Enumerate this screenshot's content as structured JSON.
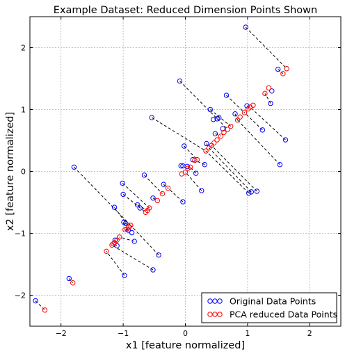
{
  "chart_data": {
    "type": "scatter",
    "title": "Example Dataset: Reduced Dimension Points Shown",
    "xlabel": "x1 [feature normalized]",
    "ylabel": "x2 [feature normalized]",
    "xlim": [
      -2.5,
      2.5
    ],
    "ylim": [
      -2.5,
      2.5
    ],
    "xticks": [
      -2,
      -1,
      0,
      1,
      2
    ],
    "yticks": [
      -2,
      -1,
      0,
      1,
      2
    ],
    "xtick_labels": [
      "−2",
      "−1",
      "0",
      "1",
      "2"
    ],
    "ytick_labels": [
      "−2",
      "−1",
      "0",
      "1",
      "2"
    ],
    "grid": true,
    "legend_position": "bottom-right",
    "colors": {
      "original": "#0000ff",
      "reduced": "#ff0000",
      "connector": "#000000"
    },
    "series": [
      {
        "name": "Original Data Points",
        "marker": "open-circle",
        "color": "#0000ff",
        "points": [
          [
            -2.41,
            -2.09
          ],
          [
            -1.87,
            -1.73
          ],
          [
            -1.79,
            0.07
          ],
          [
            -1.13,
            -1.11
          ],
          [
            -1.1,
            -1.2
          ],
          [
            -1.14,
            -0.58
          ],
          [
            -0.98,
            -1.68
          ],
          [
            -1.0,
            -0.37
          ],
          [
            -1.01,
            -0.19
          ],
          [
            -0.99,
            -0.82
          ],
          [
            -0.96,
            -0.84
          ],
          [
            -0.92,
            -0.95
          ],
          [
            -0.86,
            -0.99
          ],
          [
            -0.82,
            -1.13
          ],
          [
            -0.77,
            -0.54
          ],
          [
            -0.73,
            -0.59
          ],
          [
            -0.66,
            -0.06
          ],
          [
            -0.54,
            0.87
          ],
          [
            -0.52,
            -1.59
          ],
          [
            -0.52,
            -0.43
          ],
          [
            -0.43,
            -1.35
          ],
          [
            -0.35,
            -0.21
          ],
          [
            -0.09,
            1.46
          ],
          [
            -0.07,
            0.09
          ],
          [
            -0.04,
            0.09
          ],
          [
            -0.02,
            0.41
          ],
          [
            -0.04,
            -0.49
          ],
          [
            0.03,
            0.08
          ],
          [
            0.12,
            0.19
          ],
          [
            0.17,
            -0.03
          ],
          [
            0.26,
            -0.31
          ],
          [
            0.31,
            0.11
          ],
          [
            0.34,
            0.45
          ],
          [
            0.4,
            1.0
          ],
          [
            0.45,
            0.84
          ],
          [
            0.48,
            0.61
          ],
          [
            0.51,
            0.85
          ],
          [
            0.54,
            0.87
          ],
          [
            0.6,
            0.69
          ],
          [
            0.66,
            1.23
          ],
          [
            0.8,
            0.93
          ],
          [
            0.99,
            1.06
          ],
          [
            1.02,
            -0.35
          ],
          [
            1.06,
            -0.33
          ],
          [
            1.15,
            -0.32
          ],
          [
            1.24,
            0.67
          ],
          [
            1.37,
            1.1
          ],
          [
            1.39,
            1.3
          ],
          [
            1.52,
            0.11
          ],
          [
            1.61,
            0.51
          ],
          [
            0.97,
            2.33
          ],
          [
            1.49,
            1.65
          ]
        ]
      },
      {
        "name": "PCA reduced Data Points",
        "marker": "open-circle",
        "color": "#ff0000",
        "points": [
          [
            -2.26,
            -2.24
          ],
          [
            -1.81,
            -1.8
          ],
          [
            -1.27,
            -1.29
          ],
          [
            -1.18,
            -1.19
          ],
          [
            -1.16,
            -1.17
          ],
          [
            -1.14,
            -1.15
          ],
          [
            -1.1,
            -1.11
          ],
          [
            -1.06,
            -1.06
          ],
          [
            -0.97,
            -0.94
          ],
          [
            -0.94,
            -0.93
          ],
          [
            -0.91,
            -0.9
          ],
          [
            -0.88,
            -0.87
          ],
          [
            -0.64,
            -0.66
          ],
          [
            -0.61,
            -0.63
          ],
          [
            -0.58,
            -0.59
          ],
          [
            -0.45,
            -0.47
          ],
          [
            -0.37,
            -0.36
          ],
          [
            -0.28,
            -0.27
          ],
          [
            -0.06,
            -0.04
          ],
          [
            0.0,
            -0.01
          ],
          [
            0.04,
            0.05
          ],
          [
            0.08,
            0.07
          ],
          [
            0.15,
            0.18
          ],
          [
            0.19,
            0.19
          ],
          [
            0.33,
            0.33
          ],
          [
            0.38,
            0.38
          ],
          [
            0.42,
            0.42
          ],
          [
            0.46,
            0.46
          ],
          [
            0.51,
            0.51
          ],
          [
            0.57,
            0.57
          ],
          [
            0.62,
            0.63
          ],
          [
            0.68,
            0.68
          ],
          [
            0.73,
            0.73
          ],
          [
            0.84,
            0.83
          ],
          [
            0.88,
            0.88
          ],
          [
            0.95,
            0.95
          ],
          [
            1.01,
            1.01
          ],
          [
            1.04,
            1.04
          ],
          [
            1.09,
            1.07
          ],
          [
            1.28,
            1.26
          ],
          [
            1.34,
            1.35
          ],
          [
            1.57,
            1.58
          ],
          [
            1.63,
            1.66
          ]
        ]
      }
    ],
    "projection_lines": [
      [
        [
          -2.41,
          -2.09
        ],
        [
          -2.26,
          -2.24
        ]
      ],
      [
        [
          -1.87,
          -1.73
        ],
        [
          -1.81,
          -1.8
        ]
      ],
      [
        [
          -1.79,
          0.07
        ],
        [
          -0.88,
          -0.87
        ]
      ],
      [
        [
          -1.13,
          -1.11
        ],
        [
          -1.14,
          -1.15
        ]
      ],
      [
        [
          -1.1,
          -1.2
        ],
        [
          -1.16,
          -1.17
        ]
      ],
      [
        [
          -1.14,
          -0.58
        ],
        [
          -0.91,
          -0.9
        ]
      ],
      [
        [
          -0.98,
          -1.68
        ],
        [
          -1.27,
          -1.29
        ]
      ],
      [
        [
          -1.0,
          -0.37
        ],
        [
          -0.64,
          -0.66
        ]
      ],
      [
        [
          -1.01,
          -0.19
        ],
        [
          -0.58,
          -0.59
        ]
      ],
      [
        [
          -0.99,
          -0.82
        ],
        [
          -0.94,
          -0.93
        ]
      ],
      [
        [
          -0.92,
          -0.95
        ],
        [
          -0.97,
          -0.94
        ]
      ],
      [
        [
          -0.82,
          -1.13
        ],
        [
          -1.06,
          -1.06
        ]
      ],
      [
        [
          -0.77,
          -0.54
        ],
        [
          -0.61,
          -0.63
        ]
      ],
      [
        [
          -0.66,
          -0.06
        ],
        [
          -0.37,
          -0.36
        ]
      ],
      [
        [
          -0.54,
          0.87
        ],
        [
          0.33,
          0.33
        ]
      ],
      [
        [
          -0.52,
          -1.59
        ],
        [
          -1.18,
          -1.19
        ]
      ],
      [
        [
          -0.52,
          -0.43
        ],
        [
          -0.45,
          -0.47
        ]
      ],
      [
        [
          -0.43,
          -1.35
        ],
        [
          -0.88,
          -0.87
        ]
      ],
      [
        [
          -0.35,
          -0.21
        ],
        [
          -0.28,
          -0.27
        ]
      ],
      [
        [
          -0.09,
          1.46
        ],
        [
          0.68,
          0.68
        ]
      ],
      [
        [
          -0.02,
          0.41
        ],
        [
          0.19,
          0.19
        ]
      ],
      [
        [
          -0.04,
          -0.49
        ],
        [
          -0.28,
          -0.27
        ]
      ],
      [
        [
          0.17,
          -0.03
        ],
        [
          0.08,
          0.07
        ]
      ],
      [
        [
          0.26,
          -0.31
        ],
        [
          0.0,
          -0.01
        ]
      ],
      [
        [
          0.31,
          0.11
        ],
        [
          0.15,
          0.18
        ]
      ],
      [
        [
          0.34,
          0.45
        ],
        [
          0.38,
          0.38
        ]
      ],
      [
        [
          0.4,
          1.0
        ],
        [
          0.73,
          0.73
        ]
      ],
      [
        [
          0.48,
          0.61
        ],
        [
          0.57,
          0.57
        ]
      ],
      [
        [
          0.66,
          1.23
        ],
        [
          0.95,
          0.95
        ]
      ],
      [
        [
          0.8,
          0.93
        ],
        [
          0.84,
          0.83
        ]
      ],
      [
        [
          0.99,
          1.06
        ],
        [
          1.04,
          1.04
        ]
      ],
      [
        [
          1.02,
          -0.35
        ],
        [
          0.33,
          0.33
        ]
      ],
      [
        [
          1.06,
          -0.33
        ],
        [
          0.38,
          0.38
        ]
      ],
      [
        [
          1.15,
          -0.32
        ],
        [
          0.42,
          0.42
        ]
      ],
      [
        [
          1.24,
          0.67
        ],
        [
          0.95,
          0.95
        ]
      ],
      [
        [
          1.37,
          1.1
        ],
        [
          1.28,
          1.26
        ]
      ],
      [
        [
          1.52,
          0.11
        ],
        [
          0.84,
          0.83
        ]
      ],
      [
        [
          1.61,
          0.51
        ],
        [
          1.04,
          1.04
        ]
      ],
      [
        [
          0.97,
          2.33
        ],
        [
          1.63,
          1.66
        ]
      ],
      [
        [
          1.49,
          1.65
        ],
        [
          1.57,
          1.58
        ]
      ]
    ]
  }
}
